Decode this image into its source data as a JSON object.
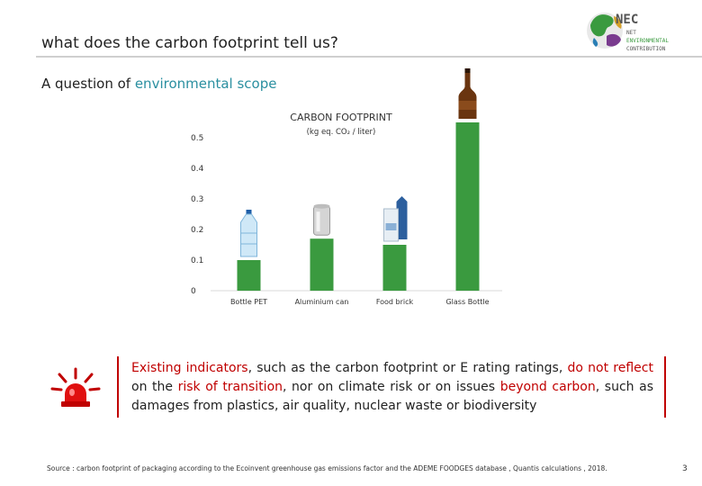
{
  "slide": {
    "title": "what does the carbon footprint tell us?",
    "subtitle_prefix": "A question of ",
    "subtitle_highlight": "environmental scope",
    "accent_color": "#2a8fa0",
    "alert_color": "#c00000",
    "page_number": "3",
    "footer": "Source : carbon footprint of packaging according to the Ecoinvent greenhouse gas emissions factor and the ADEME FOODGES database , Quantis calculations , 2018."
  },
  "logo": {
    "text_1": "NEC",
    "text_2": "NET",
    "text_3": "ENVIRONMENTAL",
    "text_4": "CONTRIBUTION"
  },
  "chart_data": {
    "type": "bar",
    "title": "CARBON FOOTPRINT",
    "unit_label": "(kg eq. CO₂ / liter)",
    "categories": [
      "Bottle PET",
      "Aluminium can",
      "Food brick",
      "Glass Bottle"
    ],
    "values": [
      0.1,
      0.17,
      0.15,
      0.55
    ],
    "ylim": [
      0,
      0.55
    ],
    "yticks": [
      0,
      0.1,
      0.2,
      0.3,
      0.4,
      0.5
    ],
    "ytick_labels": [
      "0",
      "0.1",
      "0.2",
      "0.3",
      "0.4",
      "0.5"
    ],
    "bar_color": "#3a9a3f",
    "grid": false,
    "icons": [
      "water-bottle-icon",
      "aluminium-can-icon",
      "food-brick-icon",
      "glass-bottle-icon"
    ]
  },
  "callout": {
    "p1": "Existing indicators",
    "p2": ", such as the carbon footprint or E rating ratings, ",
    "p3": "do not reflect",
    "p4": " on the ",
    "p5": "risk of transition",
    "p6": ", nor on climate risk or on issues ",
    "p7": "beyond carbon",
    "p8": ", such as damages from plastics, air quality, nuclear waste or biodiversity"
  }
}
